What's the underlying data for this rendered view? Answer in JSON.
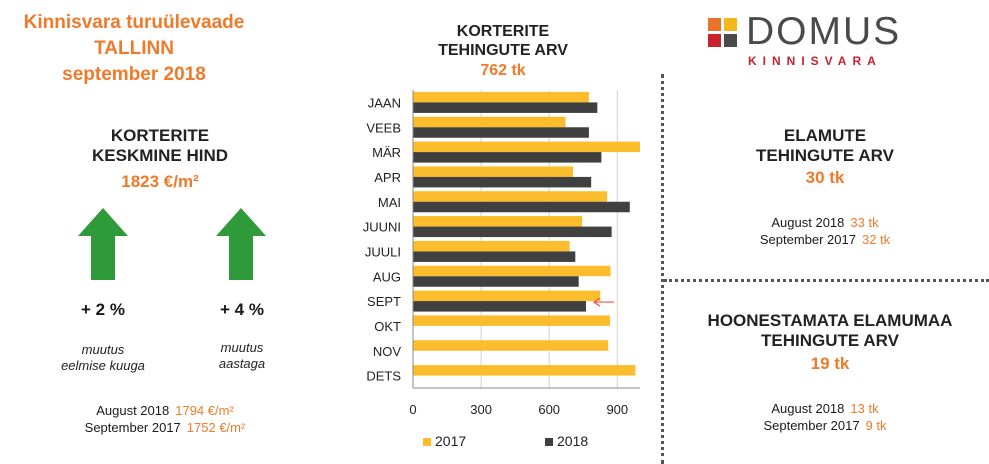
{
  "header": {
    "line1": "Kinnisvara turuülevaade",
    "line2": "TALLINN",
    "line3": "september 2018"
  },
  "apartments_price": {
    "title_line1": "KORTERITE",
    "title_line2": "KESKMINE HIND",
    "value": "1823 €/m²",
    "monthly_change": "+ 2 %",
    "monthly_note_line1": "muutus",
    "monthly_note_line2": "eelmise kuuga",
    "yearly_change": "+ 4 %",
    "yearly_note_line1": "muutus",
    "yearly_note_line2": "aastaga",
    "comparisons": [
      {
        "label": "August 2018",
        "value": "1794 €/m²"
      },
      {
        "label": "September 2017",
        "value": "1752 €/m²"
      }
    ]
  },
  "logo": {
    "name": "DOMUS",
    "sub": "KINNISVARA",
    "colors": [
      "#e8732b",
      "#c8232c",
      "#f4b81c",
      "#4a4a4a"
    ]
  },
  "houses": {
    "title_line1": "ELAMUTE",
    "title_line2": "TEHINGUTE ARV",
    "value": "30 tk",
    "comparisons": [
      {
        "label": "August 2018",
        "value": "33 tk"
      },
      {
        "label": "September 2017",
        "value": "32 tk"
      }
    ]
  },
  "land": {
    "title_line1": "HOONESTAMATA ELAMUMAA",
    "title_line2": "TEHINGUTE ARV",
    "value": "19 tk",
    "comparisons": [
      {
        "label": "August 2018",
        "value": "13 tk"
      },
      {
        "label": "September 2017",
        "value": "9 tk"
      }
    ]
  },
  "colors": {
    "accent": "#f07a2a",
    "arrow_green": "#2e9a3a",
    "bar_2017": "#fbbd2b",
    "bar_2018": "#404040"
  },
  "chart_data": {
    "type": "bar",
    "orientation": "horizontal",
    "title_line1": "KORTERITE",
    "title_line2": "TEHINGUTE ARV",
    "subtitle": "762 tk",
    "categories": [
      "JAAN",
      "VEEB",
      "MÄR",
      "APR",
      "MAI",
      "JUUNI",
      "JUULI",
      "AUG",
      "SEPT",
      "OKT",
      "NOV",
      "DETS"
    ],
    "series": [
      {
        "name": "2017",
        "color": "#fbbd2b",
        "values": [
          775,
          672,
          1000,
          705,
          855,
          745,
          690,
          870,
          825,
          868,
          860,
          980
        ]
      },
      {
        "name": "2018",
        "color": "#404040",
        "values": [
          812,
          775,
          830,
          785,
          955,
          875,
          715,
          730,
          762,
          null,
          null,
          null
        ]
      }
    ],
    "xlim": [
      0,
      1000
    ],
    "xticks": [
      "0",
      "300",
      "600",
      "900"
    ],
    "xtick_values": [
      0,
      300,
      600,
      900
    ],
    "grid": true,
    "legend": "bottom",
    "annotation": "arrow-left at SEPT 2018"
  }
}
